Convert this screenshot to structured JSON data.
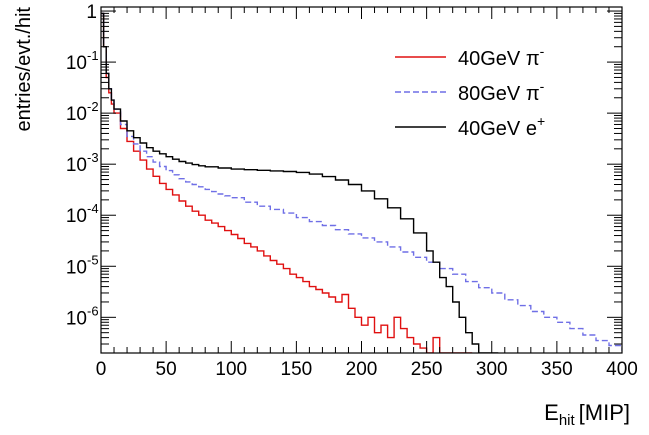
{
  "chart_data": {
    "type": "line",
    "subtype": "step-histogram",
    "xlabel": "E",
    "xlabel_sub": "hit",
    "xlabel_unit": "[MIP]",
    "ylabel": "entries/evt./hit",
    "xlim": [
      0,
      400
    ],
    "ylim": [
      2e-07,
      1.2
    ],
    "yscale": "log",
    "grid": false,
    "legend_position": "top-right",
    "x_ticks": [
      "0",
      "50",
      "100",
      "150",
      "200",
      "250",
      "300",
      "350",
      "400"
    ],
    "y_ticks": [
      {
        "base": "10",
        "exp": "-6"
      },
      {
        "base": "10",
        "exp": "-5"
      },
      {
        "base": "10",
        "exp": "-4"
      },
      {
        "base": "10",
        "exp": "-3"
      },
      {
        "base": "10",
        "exp": "-2"
      },
      {
        "base": "10",
        "exp": "-1"
      },
      {
        "base": "1",
        "exp": ""
      }
    ],
    "series": [
      {
        "label": "40GeV π",
        "label_sup": "-",
        "color": "#e01010",
        "style": "solid",
        "x": [
          0,
          2,
          4,
          6,
          8,
          10,
          15,
          20,
          25,
          30,
          35,
          40,
          45,
          50,
          55,
          60,
          65,
          70,
          75,
          80,
          85,
          90,
          95,
          100,
          105,
          110,
          115,
          120,
          125,
          130,
          135,
          140,
          145,
          150,
          155,
          160,
          165,
          170,
          175,
          180,
          185,
          190,
          195,
          200,
          205,
          210,
          215,
          220,
          225,
          230,
          235,
          240,
          245,
          250,
          255,
          260,
          265,
          270,
          275,
          280
        ],
        "y": [
          0.9,
          0.2,
          0.05,
          0.025,
          0.015,
          0.01,
          0.005,
          0.0028,
          0.0018,
          0.0012,
          0.0008,
          0.00058,
          0.00042,
          0.00032,
          0.00025,
          0.00019,
          0.00015,
          0.00012,
          0.0001,
          8e-05,
          7e-05,
          6e-05,
          5e-05,
          4.2e-05,
          3.5e-05,
          2.8e-05,
          2.4e-05,
          2e-05,
          1.6e-05,
          1.3e-05,
          1.1e-05,
          9e-06,
          7e-06,
          6e-06,
          5e-06,
          4e-06,
          3.5e-06,
          3e-06,
          2.5e-06,
          2e-06,
          2.8e-06,
          1.5e-06,
          1e-06,
          7e-07,
          1e-06,
          5e-07,
          7e-07,
          4e-07,
          1e-06,
          6e-07,
          4e-07,
          3e-07,
          2.5e-07,
          2e-07,
          4e-07,
          2e-07,
          2e-07,
          2e-07,
          2e-07,
          2e-07
        ]
      },
      {
        "label": "80GeV π",
        "label_sup": "-",
        "color": "#6f6fe6",
        "style": "dashed",
        "x": [
          0,
          2,
          4,
          6,
          8,
          10,
          15,
          20,
          25,
          30,
          35,
          40,
          45,
          50,
          55,
          60,
          65,
          70,
          75,
          80,
          85,
          90,
          95,
          100,
          110,
          120,
          130,
          140,
          150,
          160,
          170,
          180,
          190,
          200,
          210,
          220,
          230,
          240,
          250,
          260,
          270,
          280,
          290,
          300,
          310,
          320,
          330,
          340,
          350,
          360,
          370,
          380,
          390,
          400
        ],
        "y": [
          0.9,
          0.2,
          0.06,
          0.03,
          0.018,
          0.012,
          0.006,
          0.0035,
          0.0025,
          0.0018,
          0.0014,
          0.0011,
          0.0009,
          0.00075,
          0.00062,
          0.00052,
          0.00045,
          0.0004,
          0.00036,
          0.00032,
          0.00029,
          0.00026,
          0.00024,
          0.00022,
          0.00018,
          0.00015,
          0.00013,
          0.00011,
          9e-05,
          7.5e-05,
          6.3e-05,
          5.2e-05,
          4.3e-05,
          3.6e-05,
          3e-05,
          2.4e-05,
          1.9e-05,
          1.5e-05,
          1.2e-05,
          9e-06,
          7e-06,
          5e-06,
          3.8e-06,
          3e-06,
          2.2e-06,
          1.7e-06,
          1.3e-06,
          1e-06,
          8e-07,
          6e-07,
          4.5e-07,
          3.5e-07,
          2.8e-07,
          2.2e-07
        ]
      },
      {
        "label": "40GeV e",
        "label_sup": "+",
        "color": "#000000",
        "style": "solid",
        "x": [
          0,
          2,
          4,
          6,
          8,
          10,
          15,
          20,
          25,
          30,
          35,
          40,
          45,
          50,
          55,
          60,
          65,
          70,
          75,
          80,
          90,
          100,
          110,
          120,
          130,
          140,
          150,
          160,
          170,
          180,
          190,
          200,
          210,
          220,
          230,
          240,
          250,
          255,
          260,
          265,
          270,
          275,
          280,
          285,
          290,
          295,
          300
        ],
        "y": [
          0.9,
          0.2,
          0.06,
          0.03,
          0.018,
          0.012,
          0.007,
          0.0045,
          0.0033,
          0.0026,
          0.0021,
          0.0018,
          0.0016,
          0.0014,
          0.00125,
          0.00113,
          0.00105,
          0.00098,
          0.00093,
          0.00089,
          0.00084,
          0.0008,
          0.00078,
          0.00076,
          0.00074,
          0.00072,
          0.00069,
          0.00064,
          0.00057,
          0.00049,
          0.0004,
          0.0003,
          0.00021,
          0.00014,
          8.5e-05,
          4.5e-05,
          2e-05,
          1.2e-05,
          6e-06,
          4e-06,
          2e-06,
          1e-06,
          5e-07,
          3e-07,
          2e-07,
          2e-07,
          2e-07
        ]
      }
    ]
  }
}
